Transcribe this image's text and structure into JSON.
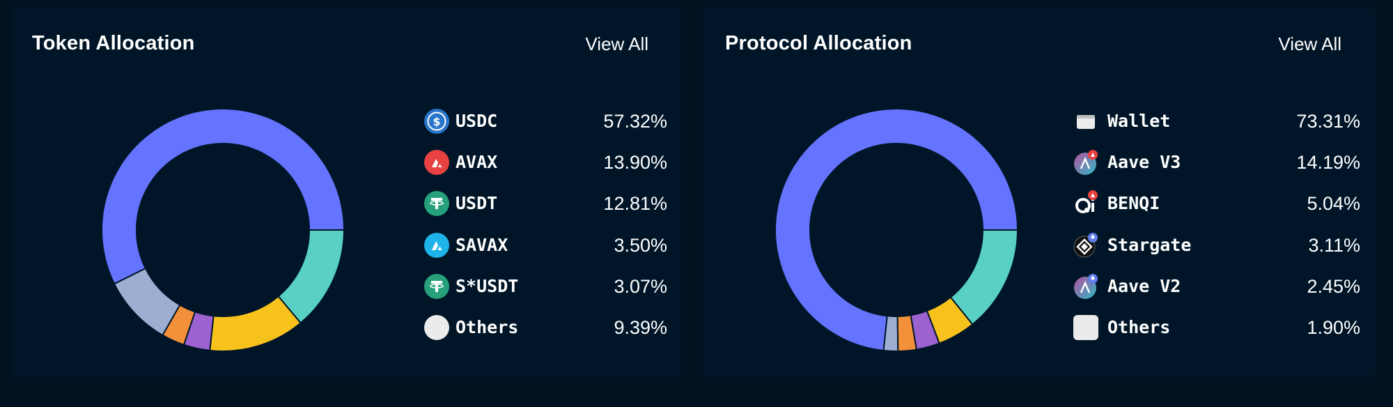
{
  "token_allocation": {
    "title": "Token Allocation",
    "view_all_label": "View All",
    "items": [
      {
        "label": "USDC",
        "value": "57.32%",
        "icon": "usdc-icon",
        "color": "#6474FF"
      },
      {
        "label": "AVAX",
        "value": "13.90%",
        "icon": "avax-icon",
        "color": "#9DAED3"
      },
      {
        "label": "USDT",
        "value": "12.81%",
        "icon": "usdt-icon",
        "color": "#F2913A"
      },
      {
        "label": "SAVAX",
        "value": "3.50%",
        "icon": "savax-icon",
        "color": "#9B62D0"
      },
      {
        "label": "S*USDT",
        "value": "3.07%",
        "icon": "susdt-icon",
        "color": "#F7C21B"
      },
      {
        "label": "Others",
        "value": "9.39%",
        "icon": "others-circle-icon",
        "color": "#58D0C4"
      }
    ]
  },
  "protocol_allocation": {
    "title": "Protocol Allocation",
    "view_all_label": "View All",
    "items": [
      {
        "label": "Wallet",
        "value": "73.31%",
        "icon": "wallet-icon",
        "color": "#6474FF"
      },
      {
        "label": "Aave V3",
        "value": "14.19%",
        "icon": "aave-v3-icon",
        "color": "#9DAED3"
      },
      {
        "label": "BENQI",
        "value": "5.04%",
        "icon": "benqi-icon",
        "color": "#F2913A"
      },
      {
        "label": "Stargate",
        "value": "3.11%",
        "icon": "stargate-icon",
        "color": "#9B62D0"
      },
      {
        "label": "Aave V2",
        "value": "2.45%",
        "icon": "aave-v2-icon",
        "color": "#F7C21B"
      },
      {
        "label": "Others",
        "value": "1.90%",
        "icon": "others-square-icon",
        "color": "#58D0C4"
      }
    ]
  },
  "chart_data": [
    {
      "type": "pie",
      "title": "Token Allocation",
      "categories": [
        "USDC",
        "AVAX",
        "USDT",
        "SAVAX",
        "S*USDT",
        "Others"
      ],
      "values": [
        57.32,
        13.9,
        12.81,
        3.5,
        3.07,
        9.39
      ],
      "donut_segments": [
        {
          "value": 57.32,
          "color": "#6474FF"
        },
        {
          "value": 9.39,
          "color": "#9DAED3"
        },
        {
          "value": 3.07,
          "color": "#F2913A"
        },
        {
          "value": 3.5,
          "color": "#9B62D0"
        },
        {
          "value": 12.81,
          "color": "#F7C21B"
        },
        {
          "value": 13.9,
          "color": "#58D0C4"
        }
      ],
      "legend": "right"
    },
    {
      "type": "pie",
      "title": "Protocol Allocation",
      "categories": [
        "Wallet",
        "Aave V3",
        "BENQI",
        "Stargate",
        "Aave V2",
        "Others"
      ],
      "values": [
        73.31,
        14.19,
        5.04,
        3.11,
        2.45,
        1.9
      ],
      "donut_segments": [
        {
          "value": 73.31,
          "color": "#6474FF"
        },
        {
          "value": 1.9,
          "color": "#9DAED3"
        },
        {
          "value": 2.45,
          "color": "#F2913A"
        },
        {
          "value": 3.11,
          "color": "#9B62D0"
        },
        {
          "value": 5.04,
          "color": "#F7C21B"
        },
        {
          "value": 14.19,
          "color": "#58D0C4"
        }
      ],
      "legend": "right"
    }
  ]
}
